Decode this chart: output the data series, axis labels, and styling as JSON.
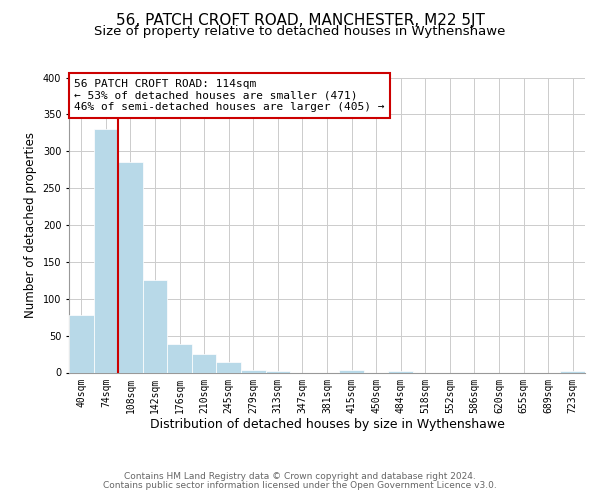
{
  "title": "56, PATCH CROFT ROAD, MANCHESTER, M22 5JT",
  "subtitle": "Size of property relative to detached houses in Wythenshawe",
  "xlabel": "Distribution of detached houses by size in Wythenshawe",
  "ylabel": "Number of detached properties",
  "bin_labels": [
    "40sqm",
    "74sqm",
    "108sqm",
    "142sqm",
    "176sqm",
    "210sqm",
    "245sqm",
    "279sqm",
    "313sqm",
    "347sqm",
    "381sqm",
    "415sqm",
    "450sqm",
    "484sqm",
    "518sqm",
    "552sqm",
    "586sqm",
    "620sqm",
    "655sqm",
    "689sqm",
    "723sqm"
  ],
  "bar_values": [
    78,
    330,
    285,
    125,
    38,
    25,
    14,
    4,
    2,
    0,
    0,
    3,
    0,
    2,
    0,
    0,
    0,
    0,
    0,
    0,
    2
  ],
  "bar_color": "#b8d9e8",
  "ylim": [
    0,
    400
  ],
  "yticks": [
    0,
    50,
    100,
    150,
    200,
    250,
    300,
    350,
    400
  ],
  "vline_color": "#cc0000",
  "annotation_line1": "56 PATCH CROFT ROAD: 114sqm",
  "annotation_line2": "← 53% of detached houses are smaller (471)",
  "annotation_line3": "46% of semi-detached houses are larger (405) →",
  "annotation_box_color": "#cc0000",
  "annotation_box_bg": "#ffffff",
  "footer_line1": "Contains HM Land Registry data © Crown copyright and database right 2024.",
  "footer_line2": "Contains public sector information licensed under the Open Government Licence v3.0.",
  "title_fontsize": 11,
  "subtitle_fontsize": 9.5,
  "xlabel_fontsize": 9,
  "ylabel_fontsize": 8.5,
  "tick_fontsize": 7,
  "annotation_fontsize": 8,
  "footer_fontsize": 6.5,
  "bg_color": "#ffffff",
  "grid_color": "#cccccc"
}
